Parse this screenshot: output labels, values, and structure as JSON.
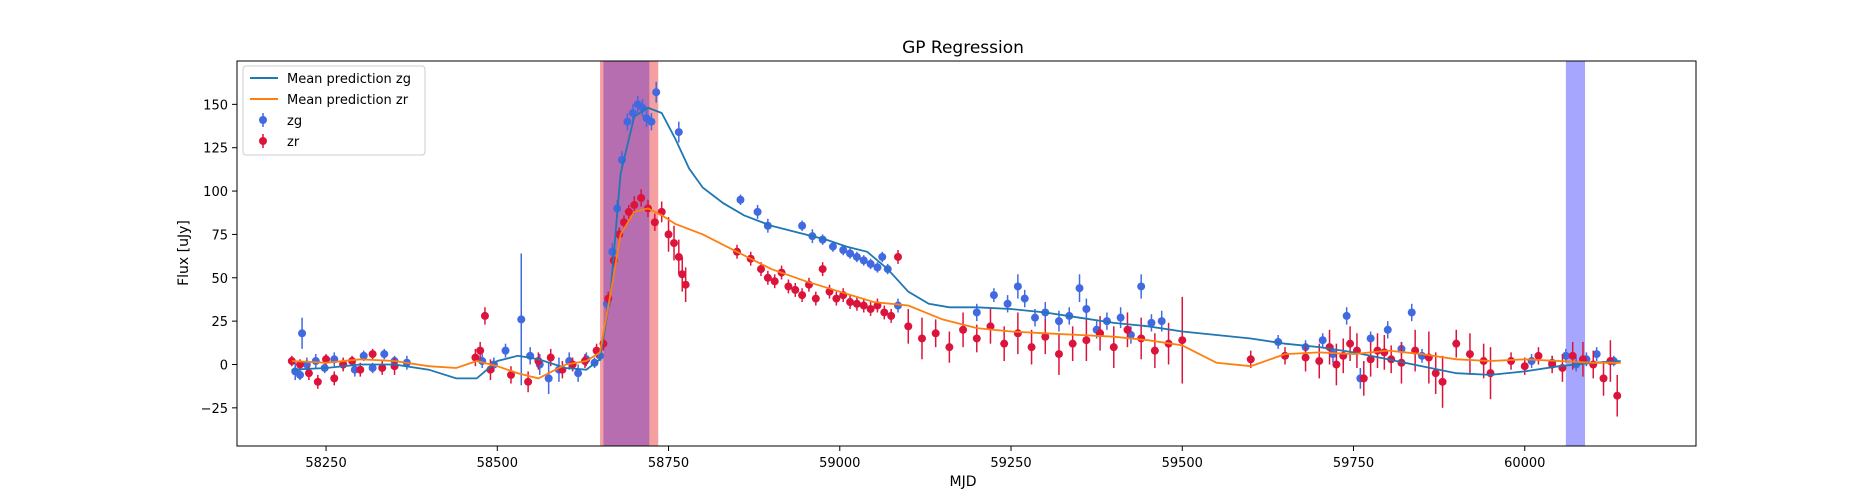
{
  "chart_data": {
    "type": "scatter",
    "title": "GP Regression",
    "xlabel": "MJD",
    "ylabel": "Flux [uJy]",
    "xlim": [
      58120,
      60250
    ],
    "ylim": [
      -47,
      175
    ],
    "xticks": [
      58250,
      58500,
      58750,
      59000,
      59250,
      59500,
      59750,
      60000
    ],
    "yticks": [
      -25,
      0,
      25,
      50,
      75,
      100,
      125,
      150
    ],
    "grid": false,
    "legend": {
      "placement": "top-left",
      "entries": [
        "Mean prediction zg",
        "Mean prediction zr",
        "zg",
        "zr"
      ]
    },
    "shaded_regions": [
      {
        "x0": 58650,
        "x1": 58735,
        "color": "#f08080",
        "opacity": 0.75
      },
      {
        "x0": 58655,
        "x1": 58722,
        "color": "#9b59b6",
        "opacity": 0.7
      },
      {
        "x0": 60060,
        "x1": 60088,
        "color": "#8080ff",
        "opacity": 0.7
      }
    ],
    "series": [
      {
        "name": "Mean prediction zg",
        "kind": "line",
        "color": "#1f77b4",
        "x": [
          58200,
          58250,
          58300,
          58350,
          58400,
          58440,
          58470,
          58500,
          58530,
          58560,
          58600,
          58630,
          58650,
          58665,
          58680,
          58700,
          58720,
          58740,
          58760,
          58780,
          58800,
          58830,
          58860,
          58900,
          58940,
          58980,
          59010,
          59040,
          59070,
          59100,
          59130,
          59160,
          59200,
          59250,
          59300,
          59350,
          59400,
          59450,
          59500,
          59550,
          59600,
          59650,
          59700,
          59750,
          59800,
          59850,
          59900,
          59950,
          60000,
          60050,
          60100,
          60140
        ],
        "y": [
          -3,
          -2,
          0,
          0,
          -3,
          -8,
          -8,
          2,
          5,
          3,
          -2,
          -3,
          3,
          40,
          110,
          143,
          148,
          145,
          130,
          113,
          102,
          93,
          86,
          80,
          76,
          72,
          68,
          65,
          55,
          42,
          35,
          33,
          33,
          32,
          30,
          27,
          24,
          22,
          19,
          17,
          15,
          12,
          10,
          7,
          3,
          -1,
          -5,
          -6,
          -4,
          -1,
          1,
          2
        ]
      },
      {
        "name": "Mean prediction zr",
        "kind": "line",
        "color": "#ff7f0e",
        "x": [
          58200,
          58250,
          58300,
          58350,
          58400,
          58440,
          58470,
          58500,
          58530,
          58560,
          58600,
          58630,
          58650,
          58665,
          58680,
          58700,
          58720,
          58740,
          58760,
          58800,
          58850,
          58900,
          58950,
          59000,
          59050,
          59100,
          59150,
          59200,
          59250,
          59300,
          59350,
          59400,
          59450,
          59500,
          59550,
          59600,
          59650,
          59700,
          59750,
          59800,
          59850,
          59900,
          59950,
          60000,
          60050,
          60100,
          60140
        ],
        "y": [
          2,
          1,
          3,
          2,
          -1,
          -2,
          2,
          -1,
          -5,
          -8,
          0,
          2,
          7,
          40,
          75,
          88,
          90,
          86,
          81,
          75,
          65,
          55,
          48,
          42,
          36,
          34,
          26,
          21,
          19,
          18,
          17,
          16,
          14,
          11,
          1,
          -1,
          6,
          7,
          6,
          8,
          6,
          3,
          2,
          3,
          2,
          1,
          1
        ]
      },
      {
        "name": "zg",
        "kind": "errorbar",
        "color": "#4169e1",
        "x": [
          58205,
          58212,
          58215,
          58222,
          58235,
          58248,
          58262,
          58275,
          58292,
          58305,
          58318,
          58335,
          58350,
          58368,
          58478,
          58495,
          58512,
          58535,
          58548,
          58562,
          58575,
          58590,
          58605,
          58618,
          58630,
          58642,
          58650,
          58660,
          58668,
          58675,
          58682,
          58690,
          58698,
          58705,
          58712,
          58718,
          58725,
          58732,
          58765,
          58855,
          58880,
          58895,
          58945,
          58960,
          58975,
          58990,
          59005,
          59015,
          59025,
          59035,
          59045,
          59055,
          59062,
          59070,
          59085,
          59200,
          59225,
          59245,
          59260,
          59270,
          59285,
          59300,
          59320,
          59335,
          59350,
          59360,
          59375,
          59390,
          59410,
          59425,
          59440,
          59455,
          59470,
          59640,
          59680,
          59705,
          59720,
          59740,
          59760,
          59775,
          59800,
          59820,
          59835,
          59850,
          60010,
          60040,
          60060,
          60075,
          60090,
          60105,
          60130
        ],
        "y": [
          -4,
          -6,
          18,
          0,
          2,
          -2,
          3,
          0,
          -3,
          5,
          -2,
          6,
          2,
          1,
          2,
          0,
          8,
          26,
          5,
          0,
          -8,
          -3,
          2,
          -5,
          3,
          1,
          5,
          35,
          65,
          90,
          118,
          140,
          145,
          150,
          148,
          142,
          140,
          157,
          134,
          95,
          88,
          80,
          80,
          74,
          72,
          68,
          66,
          64,
          62,
          60,
          58,
          56,
          62,
          55,
          34,
          30,
          40,
          35,
          45,
          38,
          27,
          30,
          25,
          28,
          44,
          32,
          20,
          25,
          27,
          17,
          45,
          24,
          25,
          13,
          10,
          14,
          6,
          28,
          -8,
          15,
          20,
          9,
          30,
          5,
          2,
          1,
          5,
          0,
          3,
          6,
          2
        ],
        "err": [
          5,
          3,
          9,
          4,
          4,
          3,
          4,
          3,
          4,
          3,
          3,
          3,
          3,
          4,
          4,
          4,
          4,
          38,
          5,
          6,
          9,
          7,
          5,
          5,
          4,
          3,
          3,
          5,
          5,
          5,
          5,
          5,
          5,
          5,
          5,
          5,
          5,
          6,
          6,
          3,
          4,
          4,
          3,
          4,
          3,
          3,
          3,
          3,
          3,
          3,
          3,
          3,
          3,
          3,
          4,
          5,
          4,
          5,
          7,
          5,
          5,
          6,
          6,
          5,
          8,
          6,
          5,
          5,
          6,
          5,
          7,
          5,
          6,
          4,
          4,
          4,
          5,
          5,
          6,
          4,
          5,
          4,
          5,
          4,
          4,
          4,
          4,
          4,
          4,
          4,
          3
        ]
      },
      {
        "name": "zr",
        "kind": "errorbar",
        "color": "#dc143c",
        "x": [
          58200,
          58212,
          58225,
          58238,
          58250,
          58262,
          58275,
          58288,
          58300,
          58318,
          58332,
          58350,
          58468,
          58475,
          58482,
          58490,
          58520,
          58545,
          58560,
          58578,
          58595,
          58610,
          58628,
          58645,
          58655,
          58662,
          58670,
          58678,
          58685,
          58692,
          58700,
          58710,
          58720,
          58730,
          58740,
          58750,
          58758,
          58765,
          58770,
          58775,
          58850,
          58870,
          58885,
          58895,
          58905,
          58915,
          58925,
          58935,
          58945,
          58955,
          58965,
          58975,
          58985,
          58995,
          59005,
          59015,
          59025,
          59035,
          59045,
          59055,
          59065,
          59075,
          59085,
          59100,
          59120,
          59140,
          59160,
          59180,
          59200,
          59220,
          59240,
          59260,
          59280,
          59300,
          59320,
          59340,
          59360,
          59380,
          59400,
          59420,
          59440,
          59460,
          59480,
          59500,
          59600,
          59650,
          59680,
          59700,
          59715,
          59725,
          59735,
          59745,
          59755,
          59765,
          59775,
          59785,
          59795,
          59805,
          59820,
          59840,
          59860,
          59870,
          59880,
          59900,
          59920,
          59940,
          59950,
          59980,
          60000,
          60020,
          60040,
          60055,
          60070,
          60085,
          60100,
          60115,
          60125,
          60135
        ],
        "y": [
          2,
          0,
          -5,
          -10,
          3,
          -8,
          0,
          2,
          -3,
          6,
          -2,
          -1,
          4,
          8,
          28,
          -3,
          -6,
          -10,
          2,
          4,
          -3,
          0,
          2,
          8,
          12,
          38,
          60,
          75,
          82,
          88,
          92,
          96,
          90,
          82,
          88,
          75,
          70,
          62,
          52,
          46,
          65,
          61,
          55,
          50,
          48,
          53,
          45,
          43,
          40,
          46,
          38,
          55,
          42,
          38,
          40,
          36,
          35,
          34,
          32,
          34,
          30,
          28,
          62,
          22,
          15,
          18,
          10,
          20,
          15,
          22,
          12,
          18,
          10,
          16,
          6,
          12,
          14,
          18,
          10,
          20,
          15,
          8,
          12,
          14,
          3,
          5,
          4,
          2,
          10,
          0,
          5,
          12,
          8,
          -8,
          3,
          8,
          7,
          3,
          1,
          8,
          4,
          -5,
          -10,
          12,
          6,
          2,
          -5,
          2,
          -1,
          5,
          0,
          -2,
          5,
          3,
          0,
          -8,
          2,
          -18
        ],
        "err": [
          3,
          3,
          4,
          4,
          3,
          4,
          4,
          3,
          4,
          3,
          4,
          5,
          5,
          5,
          5,
          6,
          5,
          6,
          5,
          5,
          5,
          4,
          4,
          4,
          4,
          4,
          4,
          4,
          4,
          4,
          5,
          5,
          5,
          5,
          6,
          10,
          10,
          10,
          10,
          10,
          4,
          4,
          4,
          4,
          4,
          4,
          4,
          4,
          4,
          4,
          4,
          4,
          4,
          4,
          4,
          4,
          4,
          4,
          4,
          4,
          4,
          4,
          4,
          10,
          12,
          8,
          9,
          10,
          8,
          10,
          10,
          12,
          10,
          10,
          12,
          10,
          12,
          10,
          12,
          10,
          12,
          10,
          12,
          25,
          5,
          5,
          8,
          10,
          10,
          12,
          10,
          10,
          10,
          10,
          10,
          10,
          10,
          8,
          12,
          12,
          15,
          12,
          15,
          8,
          12,
          10,
          15,
          5,
          5,
          5,
          5,
          8,
          8,
          10,
          8,
          10,
          12,
          12
        ]
      }
    ]
  }
}
